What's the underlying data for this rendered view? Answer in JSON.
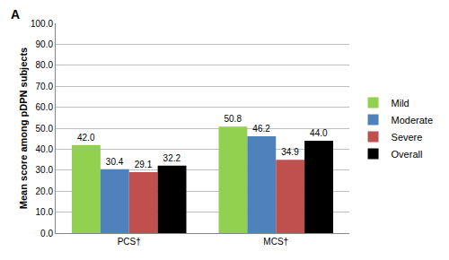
{
  "chart_data": {
    "type": "bar",
    "annotations": [
      "A"
    ],
    "y_label": "Mean score among pDPN subjects",
    "categories": [
      "PCS†",
      "MCS†"
    ],
    "series": [
      {
        "name": "Mild",
        "color": "#92d050",
        "values": [
          42.0,
          50.8
        ],
        "value_labels": [
          "42.0",
          "50.8"
        ]
      },
      {
        "name": "Moderate",
        "color": "#4f81bd",
        "values": [
          30.4,
          46.2
        ],
        "value_labels": [
          "30.4",
          "46.2"
        ]
      },
      {
        "name": "Severe",
        "color": "#c0504d",
        "values": [
          29.1,
          34.9
        ],
        "value_labels": [
          "29.1",
          "34.9"
        ]
      },
      {
        "name": "Overall",
        "color": "#000000",
        "values": [
          32.2,
          44.0
        ],
        "value_labels": [
          "32.2",
          "44.0"
        ]
      }
    ],
    "ylim": [
      0,
      100
    ],
    "yticks": [
      {
        "value": 0,
        "label": "0.0"
      },
      {
        "value": 10,
        "label": "10.0"
      },
      {
        "value": 20,
        "label": "20.0"
      },
      {
        "value": 30,
        "label": "30.0"
      },
      {
        "value": 40,
        "label": "40.0"
      },
      {
        "value": 50,
        "label": "50.0"
      },
      {
        "value": 60,
        "label": "60.0"
      },
      {
        "value": 70,
        "label": "70.0"
      },
      {
        "value": 80,
        "label": "80.0"
      },
      {
        "value": 90,
        "label": "90.0"
      },
      {
        "value": 100,
        "label": "100.0"
      }
    ],
    "grid": true,
    "legend": "right",
    "data_labels": true
  }
}
